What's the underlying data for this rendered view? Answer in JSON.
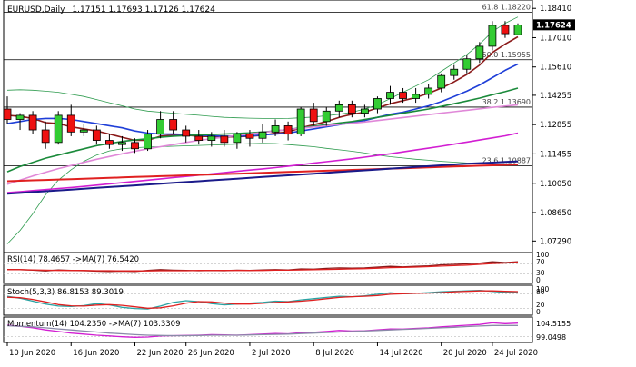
{
  "header": {
    "title": "EURUSD,Daily",
    "ohlc": "1.17151 1.17693 1.17126 1.17624"
  },
  "chart_data": [
    {
      "type": "candlestick",
      "title": "EURUSD,Daily",
      "ylim": [
        1.07,
        1.1855
      ],
      "price_ticks": [
        "1.18410",
        "1.17010",
        "1.15610",
        "1.14255",
        "1.12855",
        "1.11455",
        "1.10050",
        "1.08650",
        "1.07290"
      ],
      "current_price": "1.17624",
      "fib_levels": [
        {
          "label": "61.8 1.18220",
          "value": 1.1822
        },
        {
          "label": "50.0 1.15955",
          "value": 1.15955
        },
        {
          "label": "38.2 1.13690",
          "value": 1.1369
        },
        {
          "label": "23.6 1.10887",
          "value": 1.10887
        }
      ],
      "x_labels": [
        "10 Jun 2020",
        "16 Jun 2020",
        "22 Jun 2020",
        "26 Jun 2020",
        "2 Jul 2020",
        "8 Jul 2020",
        "14 Jul 2020",
        "20 Jul 2020",
        "24 Jul 2020"
      ],
      "candles": [
        [
          1.136,
          1.142,
          1.129,
          1.131
        ],
        [
          1.131,
          1.134,
          1.126,
          1.133
        ],
        [
          1.133,
          1.135,
          1.124,
          1.126
        ],
        [
          1.126,
          1.13,
          1.117,
          1.12
        ],
        [
          1.12,
          1.135,
          1.119,
          1.133
        ],
        [
          1.133,
          1.138,
          1.123,
          1.125
        ],
        [
          1.125,
          1.129,
          1.123,
          1.126
        ],
        [
          1.126,
          1.128,
          1.119,
          1.121
        ],
        [
          1.121,
          1.124,
          1.117,
          1.119
        ],
        [
          1.119,
          1.123,
          1.116,
          1.12
        ],
        [
          1.12,
          1.122,
          1.115,
          1.117
        ],
        [
          1.117,
          1.126,
          1.116,
          1.124
        ],
        [
          1.124,
          1.135,
          1.122,
          1.131
        ],
        [
          1.131,
          1.135,
          1.124,
          1.126
        ],
        [
          1.126,
          1.128,
          1.12,
          1.123
        ],
        [
          1.123,
          1.126,
          1.119,
          1.121
        ],
        [
          1.121,
          1.125,
          1.118,
          1.123
        ],
        [
          1.123,
          1.126,
          1.118,
          1.12
        ],
        [
          1.12,
          1.125,
          1.117,
          1.124
        ],
        [
          1.124,
          1.126,
          1.118,
          1.122
        ],
        [
          1.122,
          1.129,
          1.12,
          1.125
        ],
        [
          1.125,
          1.131,
          1.123,
          1.128
        ],
        [
          1.128,
          1.13,
          1.121,
          1.124
        ],
        [
          1.124,
          1.137,
          1.123,
          1.136
        ],
        [
          1.136,
          1.139,
          1.128,
          1.13
        ],
        [
          1.13,
          1.137,
          1.128,
          1.135
        ],
        [
          1.135,
          1.14,
          1.132,
          1.138
        ],
        [
          1.138,
          1.14,
          1.132,
          1.134
        ],
        [
          1.134,
          1.138,
          1.132,
          1.136
        ],
        [
          1.136,
          1.142,
          1.134,
          1.141
        ],
        [
          1.141,
          1.147,
          1.138,
          1.144
        ],
        [
          1.144,
          1.146,
          1.139,
          1.141
        ],
        [
          1.141,
          1.146,
          1.139,
          1.143
        ],
        [
          1.143,
          1.148,
          1.141,
          1.146
        ],
        [
          1.146,
          1.153,
          1.144,
          1.152
        ],
        [
          1.152,
          1.157,
          1.15,
          1.155
        ],
        [
          1.155,
          1.162,
          1.153,
          1.16
        ],
        [
          1.16,
          1.168,
          1.158,
          1.166
        ],
        [
          1.166,
          1.178,
          1.164,
          1.176
        ],
        [
          1.176,
          1.178,
          1.17,
          1.172
        ],
        [
          1.1715,
          1.1769,
          1.1713,
          1.1762
        ]
      ],
      "moving_averages": [
        {
          "name": "MA dark red",
          "color": "#8b1a1a",
          "values": [
            1.133,
            1.1325,
            1.1315,
            1.1295,
            1.129,
            1.1275,
            1.1265,
            1.1255,
            1.124,
            1.1225,
            1.121,
            1.121,
            1.123,
            1.1235,
            1.1235,
            1.123,
            1.1228,
            1.1226,
            1.1228,
            1.123,
            1.1234,
            1.1245,
            1.125,
            1.127,
            1.1285,
            1.13,
            1.132,
            1.1335,
            1.1345,
            1.1365,
            1.1385,
            1.14,
            1.1415,
            1.1435,
            1.146,
            1.149,
            1.1525,
            1.157,
            1.163,
            1.167,
            1.1705
          ]
        },
        {
          "name": "MA blue",
          "color": "#1f3fd8",
          "values": [
            1.129,
            1.13,
            1.131,
            1.1315,
            1.1315,
            1.131,
            1.13,
            1.129,
            1.128,
            1.127,
            1.1255,
            1.1245,
            1.124,
            1.124,
            1.1238,
            1.1235,
            1.1232,
            1.123,
            1.123,
            1.1232,
            1.1236,
            1.124,
            1.1245,
            1.1255,
            1.1265,
            1.1275,
            1.1285,
            1.1295,
            1.1305,
            1.132,
            1.1335,
            1.1345,
            1.136,
            1.1375,
            1.1395,
            1.142,
            1.1445,
            1.1475,
            1.151,
            1.1545,
            1.1575
          ]
        },
        {
          "name": "MA green",
          "color": "#1a8a3a",
          "values": [
            1.106,
            1.1085,
            1.1105,
            1.1125,
            1.114,
            1.1155,
            1.117,
            1.1185,
            1.1195,
            1.1205,
            1.1212,
            1.1218,
            1.1225,
            1.123,
            1.1233,
            1.1236,
            1.1238,
            1.124,
            1.1243,
            1.1246,
            1.125,
            1.1255,
            1.1262,
            1.127,
            1.1278,
            1.1285,
            1.1293,
            1.13,
            1.131,
            1.132,
            1.133,
            1.134,
            1.135,
            1.136,
            1.1372,
            1.1385,
            1.1398,
            1.1412,
            1.1428,
            1.1443,
            1.146
          ]
        },
        {
          "name": "MA violet",
          "color": "#e088d8",
          "values": [
            1.1,
            1.102,
            1.104,
            1.1058,
            1.1075,
            1.109,
            1.1105,
            1.112,
            1.1133,
            1.1146,
            1.1158,
            1.117,
            1.118,
            1.119,
            1.12,
            1.121,
            1.1218,
            1.1226,
            1.1234,
            1.1241,
            1.1248,
            1.1255,
            1.1262,
            1.1268,
            1.1274,
            1.128,
            1.1286,
            1.1292,
            1.1298,
            1.1305,
            1.1312,
            1.1319,
            1.1326,
            1.1333,
            1.134,
            1.1347,
            1.1354,
            1.1361,
            1.1368,
            1.1374,
            1.138
          ]
        },
        {
          "name": "MA magenta",
          "color": "#d21ed2",
          "values": [
            1.096,
            1.0965,
            1.097,
            1.0975,
            1.098,
            1.0985,
            1.099,
            1.0996,
            1.1002,
            1.1008,
            1.1014,
            1.102,
            1.1026,
            1.1032,
            1.1038,
            1.1044,
            1.105,
            1.1056,
            1.1062,
            1.1068,
            1.1074,
            1.108,
            1.1087,
            1.1094,
            1.1101,
            1.1108,
            1.1115,
            1.1122,
            1.113,
            1.1138,
            1.1146,
            1.1155,
            1.1164,
            1.1173,
            1.1182,
            1.1192,
            1.1202,
            1.1212,
            1.1222,
            1.1232,
            1.1245
          ]
        },
        {
          "name": "MA red",
          "color": "#e02020",
          "values": [
            1.1015,
            1.1017,
            1.1019,
            1.1021,
            1.1023,
            1.1025,
            1.1027,
            1.1029,
            1.1031,
            1.1033,
            1.1035,
            1.1037,
            1.1039,
            1.1041,
            1.1043,
            1.1045,
            1.1047,
            1.1049,
            1.1051,
            1.1053,
            1.1055,
            1.1057,
            1.1059,
            1.1061,
            1.1063,
            1.1065,
            1.1067,
            1.1069,
            1.1071,
            1.1073,
            1.1075,
            1.1077,
            1.1079,
            1.1081,
            1.1083,
            1.1085,
            1.1087,
            1.1089,
            1.1091,
            1.1093,
            1.1095
          ]
        },
        {
          "name": "MA navy",
          "color": "#1a1a8a",
          "values": [
            1.0955,
            1.0959,
            1.0963,
            1.0967,
            1.0971,
            1.0975,
            1.0979,
            1.0983,
            1.0987,
            1.0991,
            1.0995,
            1.0999,
            1.1003,
            1.1007,
            1.1011,
            1.1015,
            1.1019,
            1.1023,
            1.1027,
            1.1031,
            1.1035,
            1.1039,
            1.1043,
            1.1047,
            1.1051,
            1.1055,
            1.1059,
            1.1063,
            1.1067,
            1.1071,
            1.1075,
            1.1079,
            1.1083,
            1.1087,
            1.1091,
            1.1095,
            1.1098,
            1.1101,
            1.1104,
            1.1107,
            1.111
          ]
        }
      ],
      "bollinger": {
        "color": "#2e9b4e",
        "upper": [
          1.145,
          1.1452,
          1.145,
          1.1445,
          1.144,
          1.143,
          1.142,
          1.1405,
          1.139,
          1.1375,
          1.136,
          1.135,
          1.1345,
          1.134,
          1.1335,
          1.133,
          1.1325,
          1.132,
          1.1318,
          1.1316,
          1.1315,
          1.1314,
          1.1315,
          1.1318,
          1.1322,
          1.1328,
          1.1335,
          1.1345,
          1.136,
          1.138,
          1.141,
          1.144,
          1.147,
          1.15,
          1.154,
          1.158,
          1.162,
          1.167,
          1.173,
          1.177,
          1.18
        ],
        "lower": [
          1.0715,
          1.078,
          1.086,
          1.095,
          1.102,
          1.107,
          1.111,
          1.114,
          1.116,
          1.117,
          1.1175,
          1.1178,
          1.118,
          1.1182,
          1.1184,
          1.1186,
          1.1188,
          1.119,
          1.1192,
          1.1194,
          1.1196,
          1.1195,
          1.119,
          1.1185,
          1.118,
          1.1172,
          1.1165,
          1.1158,
          1.115,
          1.114,
          1.1132,
          1.1126,
          1.112,
          1.1115,
          1.111,
          1.1106,
          1.1102,
          1.11,
          1.1102,
          1.1108,
          1.1112
        ]
      }
    },
    {
      "type": "line",
      "title": "RSI(14) 78.4657 ->MA(7) 76.5420",
      "ylim": [
        0,
        100
      ],
      "tick_labels": [
        "100",
        "70",
        "30",
        "0"
      ],
      "series": [
        {
          "name": "RSI(14)",
          "color": "#8b1a1a",
          "values": [
            48,
            47,
            45,
            42,
            46,
            44,
            43,
            41,
            40,
            41,
            40,
            44,
            47,
            45,
            44,
            43,
            44,
            43,
            45,
            44,
            46,
            47,
            46,
            50,
            49,
            52,
            54,
            53,
            54,
            57,
            60,
            58,
            60,
            62,
            66,
            68,
            70,
            73,
            78,
            75,
            78
          ]
        },
        {
          "name": "MA(7)",
          "color": "#e02020",
          "values": [
            47,
            47,
            46,
            45,
            44,
            44,
            44,
            43,
            43,
            42,
            42,
            42,
            43,
            43,
            43,
            44,
            44,
            44,
            44,
            44,
            44,
            45,
            45,
            46,
            47,
            48,
            49,
            50,
            51,
            53,
            55,
            56,
            57,
            59,
            61,
            63,
            65,
            68,
            71,
            73,
            76
          ]
        }
      ]
    },
    {
      "type": "line",
      "title": "Stoch(5,3,3) 86.8153 89.3019",
      "ylim": [
        0,
        100
      ],
      "tick_labels": [
        "100",
        "80",
        "20",
        "0"
      ],
      "series": [
        {
          "name": "%K",
          "color": "#2aa3a3",
          "values": [
            70,
            62,
            50,
            38,
            30,
            28,
            32,
            40,
            35,
            25,
            20,
            18,
            30,
            45,
            52,
            48,
            40,
            35,
            38,
            42,
            45,
            50,
            48,
            55,
            60,
            65,
            70,
            68,
            72,
            78,
            84,
            80,
            82,
            85,
            88,
            90,
            92,
            94,
            90,
            86,
            87
          ]
        },
        {
          "name": "%D",
          "color": "#e02020",
          "values": [
            66,
            64,
            57,
            47,
            36,
            31,
            30,
            34,
            36,
            33,
            27,
            21,
            23,
            31,
            42,
            48,
            47,
            42,
            38,
            38,
            41,
            45,
            47,
            50,
            54,
            60,
            65,
            68,
            70,
            73,
            78,
            80,
            82,
            83,
            85,
            88,
            90,
            92,
            92,
            90,
            89
          ]
        }
      ]
    },
    {
      "type": "line",
      "title": "Momentum(14) 104.2350 ->MA(7) 103.3309",
      "tick_labels": [
        "104.5155",
        "99.0498"
      ],
      "ylim": [
        97.5,
        105.5
      ],
      "series": [
        {
          "name": "Momentum(14)",
          "color": "#d21ed2",
          "values": [
            103.4,
            103.0,
            102.4,
            101.6,
            101.0,
            100.4,
            100.0,
            99.6,
            99.3,
            99.0,
            98.8,
            98.9,
            99.3,
            99.4,
            99.5,
            99.6,
            99.8,
            99.7,
            99.6,
            99.8,
            100.0,
            100.2,
            100.1,
            100.6,
            100.7,
            101.0,
            101.4,
            101.2,
            101.3,
            101.6,
            102.0,
            101.9,
            102.2,
            102.4,
            102.8,
            103.1,
            103.4,
            103.7,
            104.3,
            104.0,
            104.2
          ]
        },
        {
          "name": "MA(7)",
          "color": "#8a8aa8",
          "values": [
            103.2,
            103.0,
            102.8,
            102.4,
            102.0,
            101.6,
            101.2,
            100.8,
            100.4,
            100.1,
            99.8,
            99.6,
            99.5,
            99.4,
            99.4,
            99.5,
            99.6,
            99.6,
            99.6,
            99.7,
            99.8,
            99.9,
            100.0,
            100.2,
            100.4,
            100.6,
            100.8,
            101.0,
            101.2,
            101.4,
            101.6,
            101.8,
            102.0,
            102.2,
            102.4,
            102.6,
            102.9,
            103.1,
            103.3,
            103.3,
            103.3
          ]
        }
      ]
    }
  ]
}
